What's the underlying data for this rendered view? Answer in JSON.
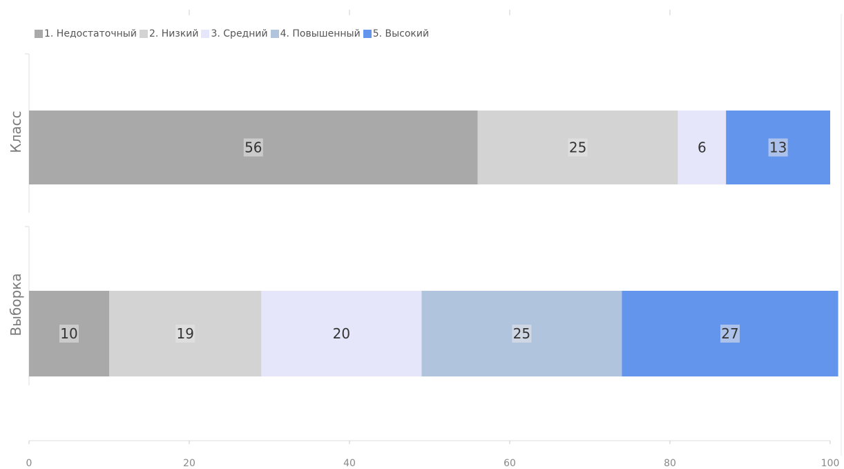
{
  "chart_data": {
    "type": "bar",
    "orientation": "horizontal",
    "stacked": true,
    "categories": [
      "Класс",
      "Выборка"
    ],
    "series": [
      {
        "name": "1. Недостаточный",
        "color": "#a9a9a9",
        "values": [
          56,
          10
        ]
      },
      {
        "name": "2. Низкий",
        "color": "#d3d3d3",
        "values": [
          25,
          19
        ]
      },
      {
        "name": "3. Средний",
        "color": "#e6e6fa",
        "values": [
          6,
          20
        ]
      },
      {
        "name": "4. Повышенный",
        "color": "#b0c4de",
        "values": [
          0,
          25
        ]
      },
      {
        "name": "5. Высокий",
        "color": "#6495ed",
        "values": [
          13,
          27
        ]
      }
    ],
    "xlim": [
      0,
      100
    ],
    "xticks": [
      "0",
      "20",
      "40",
      "60",
      "80",
      "100"
    ],
    "legend_position": "top-left",
    "grid": false
  }
}
